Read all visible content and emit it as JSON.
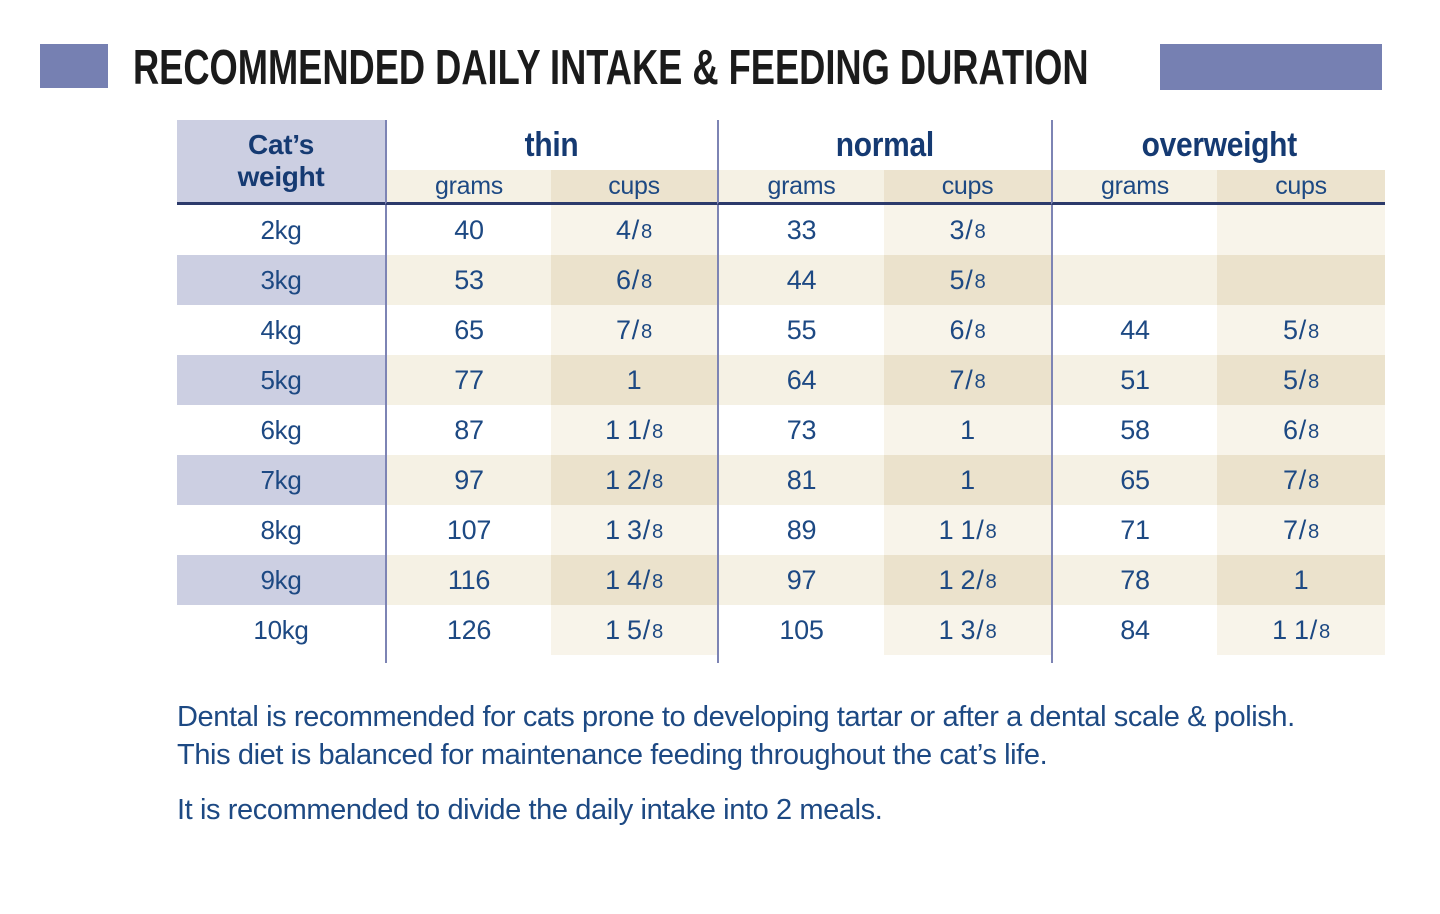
{
  "palette": {
    "accent": "#7680b2",
    "lavender": "#cccfe2",
    "navy": "#1d4983",
    "navy_dark": "#153a72",
    "cream": "#f5f1e4",
    "tan": "#ece3ce"
  },
  "title": "RECOMMENDED DAILY INTAKE & FEEDING DURATION",
  "table": {
    "weight_header_line1": "Cat’s",
    "weight_header_line2": "weight",
    "groups": [
      {
        "label": "thin"
      },
      {
        "label": "normal"
      },
      {
        "label": "overweight"
      }
    ],
    "subheaders": {
      "grams": "grams",
      "cups": "cups"
    },
    "rows": [
      {
        "weight": "2kg",
        "thin": {
          "grams": "40",
          "cups": "4/8"
        },
        "normal": {
          "grams": "33",
          "cups": "3/8"
        },
        "overweight": {
          "grams": "",
          "cups": ""
        }
      },
      {
        "weight": "3kg",
        "thin": {
          "grams": "53",
          "cups": "6/8"
        },
        "normal": {
          "grams": "44",
          "cups": "5/8"
        },
        "overweight": {
          "grams": "",
          "cups": ""
        }
      },
      {
        "weight": "4kg",
        "thin": {
          "grams": "65",
          "cups": "7/8"
        },
        "normal": {
          "grams": "55",
          "cups": "6/8"
        },
        "overweight": {
          "grams": "44",
          "cups": "5/8"
        }
      },
      {
        "weight": "5kg",
        "thin": {
          "grams": "77",
          "cups": "1"
        },
        "normal": {
          "grams": "64",
          "cups": "7/8"
        },
        "overweight": {
          "grams": "51",
          "cups": "5/8"
        }
      },
      {
        "weight": "6kg",
        "thin": {
          "grams": "87",
          "cups": "1 1/8"
        },
        "normal": {
          "grams": "73",
          "cups": "1"
        },
        "overweight": {
          "grams": "58",
          "cups": "6/8"
        }
      },
      {
        "weight": "7kg",
        "thin": {
          "grams": "97",
          "cups": "1 2/8"
        },
        "normal": {
          "grams": "81",
          "cups": "1"
        },
        "overweight": {
          "grams": "65",
          "cups": "7/8"
        }
      },
      {
        "weight": "8kg",
        "thin": {
          "grams": "107",
          "cups": "1 3/8"
        },
        "normal": {
          "grams": "89",
          "cups": "1 1/8"
        },
        "overweight": {
          "grams": "71",
          "cups": "7/8"
        }
      },
      {
        "weight": "9kg",
        "thin": {
          "grams": "116",
          "cups": "1 4/8"
        },
        "normal": {
          "grams": "97",
          "cups": "1 2/8"
        },
        "overweight": {
          "grams": "78",
          "cups": "1"
        }
      },
      {
        "weight": "10kg",
        "thin": {
          "grams": "126",
          "cups": "1 5/8"
        },
        "normal": {
          "grams": "105",
          "cups": "1 3/8"
        },
        "overweight": {
          "grams": "84",
          "cups": "1 1/8"
        }
      }
    ]
  },
  "footer": {
    "note1_line1": "Dental is recommended for cats prone to developing tartar or after a dental scale & polish.",
    "note1_line2": "This diet is balanced for maintenance feeding throughout the cat’s life.",
    "note2": "It is recommended to divide the daily intake into 2 meals."
  }
}
